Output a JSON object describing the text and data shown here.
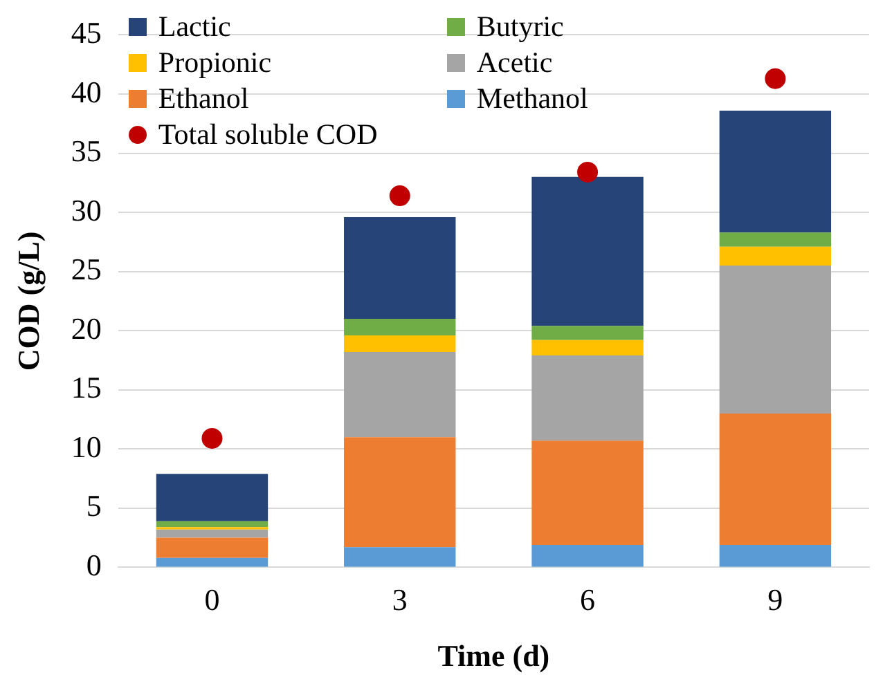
{
  "chart_data": {
    "type": "bar",
    "stacked": true,
    "xlabel": "Time (d)",
    "ylabel": "COD (g/L)",
    "categories": [
      "0",
      "3",
      "6",
      "9"
    ],
    "ylim": [
      0,
      45
    ],
    "yticks": [
      0,
      5,
      10,
      15,
      20,
      25,
      30,
      35,
      40,
      45
    ],
    "grid": "y",
    "legend": "top left",
    "series": [
      {
        "name": "Methanol",
        "color": "#5b9bd5",
        "values": [
          0.8,
          1.7,
          1.9,
          1.9
        ]
      },
      {
        "name": "Ethanol",
        "color": "#ed7d31",
        "values": [
          1.7,
          9.3,
          8.8,
          11.1
        ]
      },
      {
        "name": "Acetic",
        "color": "#a5a5a5",
        "values": [
          0.7,
          7.2,
          7.2,
          12.5
        ]
      },
      {
        "name": "Propionic",
        "color": "#ffc000",
        "values": [
          0.2,
          1.4,
          1.3,
          1.6
        ]
      },
      {
        "name": "Butyric",
        "color": "#70ad47",
        "values": [
          0.5,
          1.4,
          1.2,
          1.2
        ]
      },
      {
        "name": "Lactic",
        "color": "#264478",
        "values": [
          4.0,
          8.6,
          12.6,
          10.3
        ]
      },
      {
        "name": "Total soluble COD",
        "type": "scatter",
        "marker": "circle",
        "color": "#c00000",
        "x": [
          "0",
          "3",
          "6",
          "9"
        ],
        "values": [
          10.9,
          31.4,
          33.4,
          41.3
        ]
      }
    ]
  }
}
